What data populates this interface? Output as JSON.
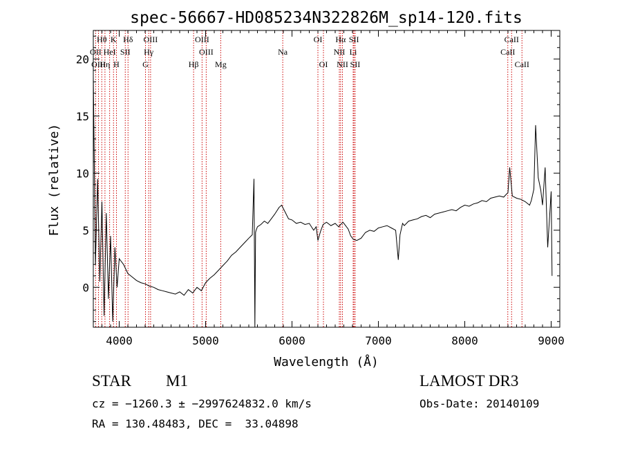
{
  "chart_data": {
    "type": "line",
    "title": "spec-56667-HD085234N322826M_sp14-120.fits",
    "xlabel": "Wavelength (Å)",
    "ylabel": "Flux (relative)",
    "xlim": [
      3700,
      9100
    ],
    "ylim": [
      -3.5,
      22.5
    ],
    "xticks": [
      4000,
      5000,
      6000,
      7000,
      8000,
      9000
    ],
    "yticks": [
      0,
      5,
      10,
      15,
      20
    ],
    "grid": false,
    "line_color": "#000000",
    "marker_color": "#cc0000",
    "x": [
      3700,
      3725,
      3750,
      3775,
      3800,
      3825,
      3850,
      3875,
      3900,
      3925,
      3950,
      3975,
      4000,
      4050,
      4100,
      4150,
      4200,
      4250,
      4300,
      4350,
      4400,
      4450,
      4500,
      4550,
      4600,
      4650,
      4700,
      4750,
      4800,
      4850,
      4900,
      4950,
      5000,
      5050,
      5100,
      5150,
      5200,
      5250,
      5300,
      5350,
      5400,
      5450,
      5500,
      5540,
      5560,
      5570,
      5578,
      5585,
      5600,
      5640,
      5680,
      5720,
      5760,
      5800,
      5850,
      5880,
      5920,
      5960,
      6000,
      6050,
      6100,
      6150,
      6200,
      6250,
      6280,
      6300,
      6330,
      6360,
      6400,
      6450,
      6500,
      6540,
      6563,
      6590,
      6620,
      6650,
      6680,
      6710,
      6750,
      6800,
      6850,
      6900,
      6950,
      7000,
      7050,
      7100,
      7150,
      7200,
      7230,
      7250,
      7280,
      7300,
      7350,
      7400,
      7450,
      7500,
      7550,
      7600,
      7650,
      7700,
      7750,
      7800,
      7850,
      7900,
      7950,
      8000,
      8050,
      8100,
      8150,
      8200,
      8250,
      8300,
      8350,
      8400,
      8450,
      8500,
      8520,
      8550,
      8600,
      8650,
      8700,
      8750,
      8770,
      8800,
      8820,
      8850,
      8880,
      8900,
      8930,
      8960,
      9000,
      9010
    ],
    "y": [
      18.5,
      2.0,
      9.5,
      0.5,
      7.5,
      -2.5,
      6.5,
      -1.0,
      4.5,
      -3.0,
      3.5,
      0.0,
      2.5,
      2.0,
      1.2,
      0.9,
      0.6,
      0.4,
      0.3,
      0.1,
      0.0,
      -0.2,
      -0.3,
      -0.4,
      -0.5,
      -0.6,
      -0.4,
      -0.7,
      -0.2,
      -0.5,
      0.0,
      -0.3,
      0.4,
      0.8,
      1.1,
      1.5,
      1.9,
      2.3,
      2.8,
      3.1,
      3.5,
      3.9,
      4.3,
      4.6,
      9.5,
      -3.5,
      4.8,
      5.0,
      5.3,
      5.5,
      5.8,
      5.6,
      6.0,
      6.4,
      7.0,
      7.2,
      6.6,
      6.0,
      5.9,
      5.6,
      5.7,
      5.5,
      5.6,
      5.0,
      5.3,
      4.1,
      4.9,
      5.5,
      5.7,
      5.4,
      5.6,
      5.3,
      5.5,
      5.7,
      5.4,
      5.1,
      4.5,
      4.2,
      4.1,
      4.3,
      4.8,
      5.0,
      4.9,
      5.2,
      5.3,
      5.4,
      5.2,
      5.0,
      2.4,
      4.6,
      5.6,
      5.4,
      5.8,
      5.9,
      6.0,
      6.2,
      6.3,
      6.1,
      6.4,
      6.5,
      6.6,
      6.7,
      6.8,
      6.7,
      7.0,
      7.2,
      7.1,
      7.3,
      7.4,
      7.6,
      7.5,
      7.8,
      7.9,
      8.0,
      7.9,
      8.3,
      10.5,
      8.0,
      7.8,
      7.7,
      7.5,
      7.2,
      7.6,
      8.6,
      14.2,
      9.6,
      8.5,
      7.2,
      10.5,
      3.5,
      8.4,
      1.0
    ]
  },
  "lines": {
    "row1": [
      {
        "label": "Hθ",
        "wave": 3798
      },
      {
        "label": "K",
        "wave": 3934
      },
      {
        "label": "Hδ",
        "wave": 4102
      },
      {
        "label": "OIII",
        "wave": 4363
      },
      {
        "label": "OIII",
        "wave": 4959
      },
      {
        "label": "OI",
        "wave": 6300
      },
      {
        "label": "Hα",
        "wave": 6563
      },
      {
        "label": "SII",
        "wave": 6717
      },
      {
        "label": "CaII",
        "wave": 8542
      }
    ],
    "row2": [
      {
        "label": "OII",
        "wave": 3727
      },
      {
        "label": "HeI",
        "wave": 3889
      },
      {
        "label": "SII",
        "wave": 4070
      },
      {
        "label": "Hγ",
        "wave": 4341
      },
      {
        "label": "OIII",
        "wave": 5007
      },
      {
        "label": "Na",
        "wave": 5893
      },
      {
        "label": "NII",
        "wave": 6548
      },
      {
        "label": "Li",
        "wave": 6708
      },
      {
        "label": "CaII",
        "wave": 8498
      }
    ],
    "row3": [
      {
        "label": "OIII",
        "wave": 3760
      },
      {
        "label": "Hη",
        "wave": 3835
      },
      {
        "label": "H",
        "wave": 3968
      },
      {
        "label": "G",
        "wave": 4304
      },
      {
        "label": "Hβ",
        "wave": 4861
      },
      {
        "label": "Mg",
        "wave": 5175
      },
      {
        "label": "OI",
        "wave": 6364
      },
      {
        "label": "NII",
        "wave": 6584
      },
      {
        "label": "SII",
        "wave": 6731
      },
      {
        "label": "CaII",
        "wave": 8662
      }
    ]
  },
  "info": {
    "class": "STAR",
    "subclass": "M1",
    "cz": "cz = −1260.3 ± −2997624832.0 km/s",
    "radec": "RA = 130.48483, DEC =  33.04898",
    "survey": "LAMOST DR3",
    "obsdate": "Obs-Date: 20140109"
  }
}
